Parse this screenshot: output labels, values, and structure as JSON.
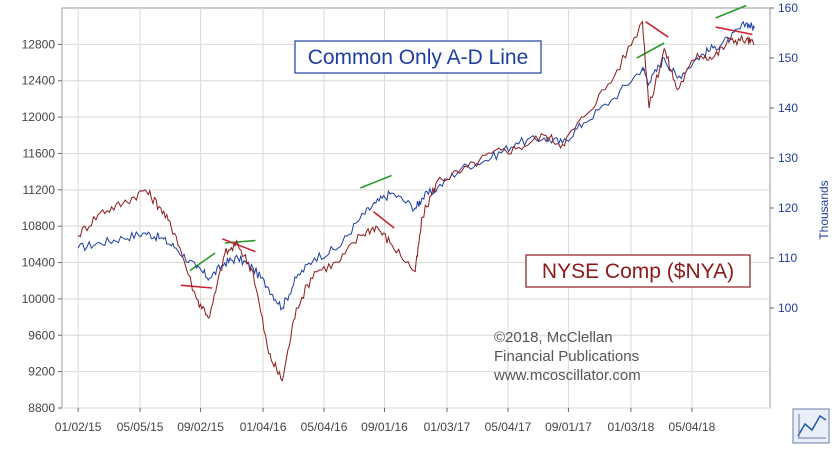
{
  "chart_data": {
    "type": "line",
    "x_ticks": [
      "01/02/15",
      "05/05/15",
      "09/02/15",
      "01/04/16",
      "05/04/16",
      "09/01/16",
      "01/03/17",
      "05/04/17",
      "09/01/17",
      "01/03/18",
      "05/04/18"
    ],
    "y_left_ticks": [
      "12800",
      "12400",
      "12000",
      "11600",
      "11200",
      "10800",
      "10400",
      "10000",
      "9600",
      "9200",
      "8800"
    ],
    "y_left_range": [
      8800,
      13200
    ],
    "y_right_ticks": [
      "160",
      "150",
      "140",
      "130",
      "120",
      "110",
      "100"
    ],
    "y_right_range": [
      80,
      160
    ],
    "y_right_label": "Thousands",
    "grid": true,
    "series": [
      {
        "name": "Common Only A-D Line",
        "axis": "right",
        "color": "#1f3fa0",
        "x": [
          "2015-01-02",
          "2015-02-15",
          "2015-04-01",
          "2015-05-15",
          "2015-06-15",
          "2015-07-15",
          "2015-08-25",
          "2015-09-20",
          "2015-10-20",
          "2015-11-15",
          "2015-12-15",
          "2016-01-15",
          "2016-02-11",
          "2016-03-10",
          "2016-04-15",
          "2016-06-01",
          "2016-07-15",
          "2016-08-15",
          "2016-09-15",
          "2016-11-01",
          "2016-11-15",
          "2016-12-15",
          "2017-02-01",
          "2017-04-01",
          "2017-05-20",
          "2017-07-15",
          "2017-08-20",
          "2017-10-01",
          "2017-12-01",
          "2018-01-26",
          "2018-02-08",
          "2018-03-10",
          "2018-04-05",
          "2018-05-15",
          "2018-06-15",
          "2018-07-20",
          "2018-08-20",
          "2018-09-05"
        ],
        "y": [
          112,
          113,
          114,
          115,
          114,
          112,
          108,
          106,
          109,
          110,
          108,
          104,
          100,
          106,
          110,
          112,
          118,
          121,
          123,
          120,
          122,
          124,
          128,
          130,
          133,
          134,
          133,
          137,
          142,
          148,
          145,
          150,
          146,
          150,
          152,
          154,
          157,
          156
        ]
      },
      {
        "name": "NYSE Comp ($NYA)",
        "axis": "left",
        "color": "#8b1a1a",
        "x": [
          "2015-01-02",
          "2015-02-15",
          "2015-04-01",
          "2015-05-15",
          "2015-06-15",
          "2015-07-15",
          "2015-08-25",
          "2015-09-20",
          "2015-10-20",
          "2015-11-15",
          "2015-12-15",
          "2016-01-15",
          "2016-02-11",
          "2016-03-10",
          "2016-04-15",
          "2016-06-01",
          "2016-07-15",
          "2016-08-15",
          "2016-09-15",
          "2016-11-01",
          "2016-11-15",
          "2016-12-15",
          "2017-02-01",
          "2017-04-01",
          "2017-05-20",
          "2017-07-15",
          "2017-08-20",
          "2017-10-01",
          "2017-12-01",
          "2018-01-26",
          "2018-02-08",
          "2018-03-10",
          "2018-04-05",
          "2018-05-15",
          "2018-06-15",
          "2018-07-20",
          "2018-08-20",
          "2018-09-05"
        ],
        "y": [
          10700,
          10950,
          11050,
          11200,
          11000,
          10700,
          10000,
          9800,
          10500,
          10600,
          10300,
          9400,
          9100,
          9900,
          10300,
          10400,
          10700,
          10800,
          10600,
          10300,
          10900,
          11300,
          11400,
          11600,
          11650,
          11800,
          11700,
          12000,
          12450,
          13050,
          12100,
          12750,
          12300,
          12700,
          12650,
          12850,
          12850,
          12800
        ]
      }
    ],
    "annotations": [
      {
        "type": "trend-line",
        "color": "#2a9a2a",
        "axis": "right",
        "x": [
          "2015-08-12",
          "2015-10-01"
        ],
        "y": [
          107.5,
          111
        ]
      },
      {
        "type": "trend-line",
        "color": "#2a9a2a",
        "axis": "right",
        "x": [
          "2015-10-20",
          "2015-12-20"
        ],
        "y": [
          113,
          113.5
        ]
      },
      {
        "type": "trend-line",
        "color": "#2a9a2a",
        "axis": "right",
        "x": [
          "2016-07-15",
          "2016-09-15"
        ],
        "y": [
          124,
          126.5
        ]
      },
      {
        "type": "trend-line",
        "color": "#2a9a2a",
        "axis": "right",
        "x": [
          "2018-01-15",
          "2018-03-10"
        ],
        "y": [
          150,
          153
        ]
      },
      {
        "type": "trend-line",
        "color": "#2a9a2a",
        "axis": "right",
        "x": [
          "2018-06-20",
          "2018-08-20"
        ],
        "y": [
          158,
          160.5
        ]
      },
      {
        "type": "trend-line",
        "color": "#cc2233",
        "axis": "left",
        "x": [
          "2015-07-25",
          "2015-09-25"
        ],
        "y": [
          10150,
          10120
        ]
      },
      {
        "type": "trend-line",
        "color": "#cc2233",
        "axis": "left",
        "x": [
          "2015-10-15",
          "2015-12-20"
        ],
        "y": [
          10660,
          10520
        ]
      },
      {
        "type": "trend-line",
        "color": "#cc2233",
        "axis": "left",
        "x": [
          "2016-08-10",
          "2016-09-20"
        ],
        "y": [
          10960,
          10780
        ]
      },
      {
        "type": "trend-line",
        "color": "#cc2233",
        "axis": "left",
        "x": [
          "2018-02-01",
          "2018-03-18"
        ],
        "y": [
          13050,
          12880
        ]
      },
      {
        "type": "trend-line",
        "color": "#cc2233",
        "axis": "left",
        "x": [
          "2018-06-20",
          "2018-09-01"
        ],
        "y": [
          12990,
          12910
        ]
      }
    ],
    "ad_label": "Common Only A-D Line",
    "nya_label": "NYSE Comp ($NYA)",
    "credit_lines": [
      "©2018, McClellan",
      "Financial Publications",
      "www.mcoscillator.com"
    ]
  }
}
